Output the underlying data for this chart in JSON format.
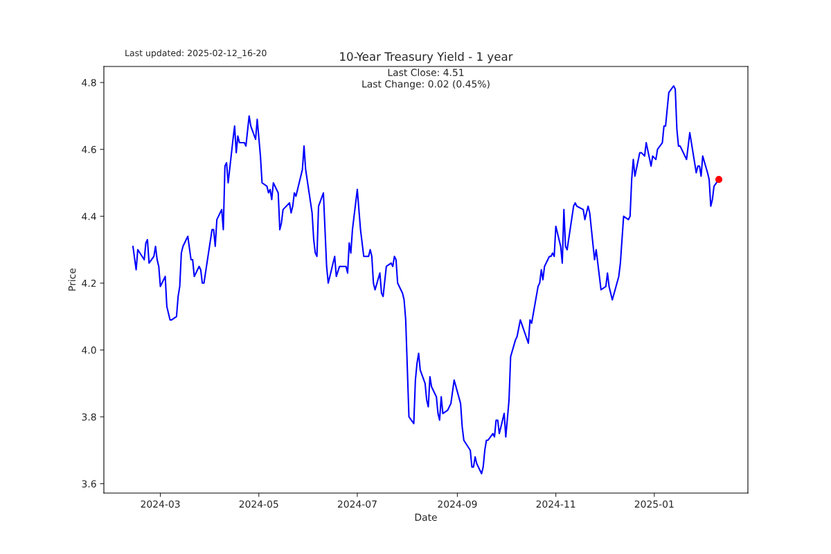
{
  "chart_data": {
    "type": "line",
    "title": "10-Year Treasury Yield - 1 year",
    "xlabel": "Date",
    "ylabel": "Price",
    "annotations": [
      "Last updated: 2025-02-12_16-20",
      "Last Close: 4.51",
      "Last Change: 0.02 (0.45%)"
    ],
    "xlim": [
      "2024-01-26",
      "2025-02-28"
    ],
    "xticks": [
      {
        "value": "2024-03-01",
        "label": "2024-03"
      },
      {
        "value": "2024-05-01",
        "label": "2024-05"
      },
      {
        "value": "2024-07-01",
        "label": "2024-07"
      },
      {
        "value": "2024-09-01",
        "label": "2024-09"
      },
      {
        "value": "2024-11-01",
        "label": "2024-11"
      },
      {
        "value": "2025-01-01",
        "label": "2025-01"
      }
    ],
    "ylim": [
      3.572,
      4.848
    ],
    "yticks": [
      3.6,
      3.8,
      {
        "value": 4,
        "label": "4.0"
      },
      4.2,
      4.4,
      4.6,
      4.8
    ],
    "grid": false,
    "legend": false,
    "series": [
      {
        "color": "#0000ff",
        "marker": "none",
        "line_style": "solid",
        "x": [
          "2024-02-13",
          "2024-02-15",
          "2024-02-16",
          "2024-02-20",
          "2024-02-21",
          "2024-02-22",
          "2024-02-23",
          "2024-02-26",
          "2024-02-27",
          "2024-02-28",
          "2024-02-29",
          "2024-03-01",
          "2024-03-04",
          "2024-03-05",
          "2024-03-07",
          "2024-03-08",
          "2024-03-11",
          "2024-03-12",
          "2024-03-13",
          "2024-03-14",
          "2024-03-15",
          "2024-03-18",
          "2024-03-20",
          "2024-03-21",
          "2024-03-22",
          "2024-03-25",
          "2024-03-26",
          "2024-03-27",
          "2024-03-28",
          "2024-04-02",
          "2024-04-03",
          "2024-04-04",
          "2024-04-05",
          "2024-04-08",
          "2024-04-09",
          "2024-04-10",
          "2024-04-11",
          "2024-04-12",
          "2024-04-15",
          "2024-04-16",
          "2024-04-17",
          "2024-04-18",
          "2024-04-19",
          "2024-04-22",
          "2024-04-23",
          "2024-04-25",
          "2024-04-26",
          "2024-04-29",
          "2024-04-30",
          "2024-05-02",
          "2024-05-03",
          "2024-05-06",
          "2024-05-07",
          "2024-05-08",
          "2024-05-09",
          "2024-05-10",
          "2024-05-13",
          "2024-05-14",
          "2024-05-15",
          "2024-05-16",
          "2024-05-20",
          "2024-05-21",
          "2024-05-22",
          "2024-05-23",
          "2024-05-24",
          "2024-05-28",
          "2024-05-29",
          "2024-05-30",
          "2024-06-03",
          "2024-06-04",
          "2024-06-05",
          "2024-06-06",
          "2024-06-07",
          "2024-06-10",
          "2024-06-12",
          "2024-06-13",
          "2024-06-17",
          "2024-06-18",
          "2024-06-20",
          "2024-06-24",
          "2024-06-25",
          "2024-06-26",
          "2024-06-27",
          "2024-06-28",
          "2024-07-01",
          "2024-07-03",
          "2024-07-05",
          "2024-07-08",
          "2024-07-09",
          "2024-07-10",
          "2024-07-11",
          "2024-07-12",
          "2024-07-15",
          "2024-07-16",
          "2024-07-17",
          "2024-07-19",
          "2024-07-22",
          "2024-07-23",
          "2024-07-24",
          "2024-07-25",
          "2024-07-26",
          "2024-07-29",
          "2024-07-30",
          "2024-07-31",
          "2024-08-02",
          "2024-08-05",
          "2024-08-06",
          "2024-08-07",
          "2024-08-08",
          "2024-08-09",
          "2024-08-12",
          "2024-08-13",
          "2024-08-14",
          "2024-08-15",
          "2024-08-16",
          "2024-08-19",
          "2024-08-20",
          "2024-08-21",
          "2024-08-22",
          "2024-08-23",
          "2024-08-26",
          "2024-08-28",
          "2024-08-30",
          "2024-09-03",
          "2024-09-04",
          "2024-09-05",
          "2024-09-09",
          "2024-09-10",
          "2024-09-11",
          "2024-09-12",
          "2024-09-13",
          "2024-09-16",
          "2024-09-17",
          "2024-09-18",
          "2024-09-19",
          "2024-09-20",
          "2024-09-23",
          "2024-09-24",
          "2024-09-25",
          "2024-09-26",
          "2024-09-27",
          "2024-09-30",
          "2024-10-01",
          "2024-10-03",
          "2024-10-04",
          "2024-10-07",
          "2024-10-08",
          "2024-10-10",
          "2024-10-15",
          "2024-10-16",
          "2024-10-17",
          "2024-10-21",
          "2024-10-22",
          "2024-10-23",
          "2024-10-24",
          "2024-10-25",
          "2024-10-28",
          "2024-10-29",
          "2024-10-30",
          "2024-10-31",
          "2024-11-01",
          "2024-11-04",
          "2024-11-05",
          "2024-11-06",
          "2024-11-07",
          "2024-11-08",
          "2024-11-12",
          "2024-11-13",
          "2024-11-14",
          "2024-11-18",
          "2024-11-19",
          "2024-11-21",
          "2024-11-22",
          "2024-11-25",
          "2024-11-26",
          "2024-11-29",
          "2024-12-02",
          "2024-12-03",
          "2024-12-04",
          "2024-12-06",
          "2024-12-10",
          "2024-12-11",
          "2024-12-13",
          "2024-12-16",
          "2024-12-17",
          "2024-12-18",
          "2024-12-19",
          "2024-12-20",
          "2024-12-23",
          "2024-12-24",
          "2024-12-26",
          "2024-12-27",
          "2024-12-30",
          "2024-12-31",
          "2025-01-02",
          "2025-01-03",
          "2025-01-06",
          "2025-01-07",
          "2025-01-08",
          "2025-01-10",
          "2025-01-13",
          "2025-01-14",
          "2025-01-15",
          "2025-01-16",
          "2025-01-17",
          "2025-01-21",
          "2025-01-23",
          "2025-01-24",
          "2025-01-27",
          "2025-01-28",
          "2025-01-29",
          "2025-01-30",
          "2025-01-31",
          "2025-02-03",
          "2025-02-04",
          "2025-02-05",
          "2025-02-06",
          "2025-02-07",
          "2025-02-10"
        ],
        "values": [
          4.31,
          4.24,
          4.3,
          4.27,
          4.32,
          4.33,
          4.26,
          4.28,
          4.31,
          4.27,
          4.25,
          4.19,
          4.22,
          4.13,
          4.09,
          4.09,
          4.1,
          4.16,
          4.19,
          4.29,
          4.31,
          4.34,
          4.27,
          4.27,
          4.22,
          4.25,
          4.24,
          4.2,
          4.2,
          4.36,
          4.36,
          4.31,
          4.39,
          4.42,
          4.36,
          4.55,
          4.56,
          4.5,
          4.63,
          4.67,
          4.59,
          4.64,
          4.62,
          4.62,
          4.61,
          4.7,
          4.67,
          4.63,
          4.69,
          4.58,
          4.5,
          4.49,
          4.47,
          4.48,
          4.45,
          4.5,
          4.47,
          4.36,
          4.38,
          4.42,
          4.44,
          4.41,
          4.43,
          4.47,
          4.46,
          4.54,
          4.61,
          4.54,
          4.41,
          4.33,
          4.29,
          4.28,
          4.43,
          4.47,
          4.25,
          4.2,
          4.28,
          4.22,
          4.25,
          4.25,
          4.23,
          4.32,
          4.29,
          4.36,
          4.48,
          4.36,
          4.28,
          4.28,
          4.3,
          4.28,
          4.2,
          4.18,
          4.23,
          4.17,
          4.16,
          4.25,
          4.26,
          4.25,
          4.28,
          4.27,
          4.2,
          4.17,
          4.15,
          4.09,
          3.8,
          3.78,
          3.91,
          3.96,
          3.99,
          3.94,
          3.9,
          3.85,
          3.83,
          3.92,
          3.89,
          3.86,
          3.81,
          3.79,
          3.86,
          3.81,
          3.82,
          3.84,
          3.91,
          3.84,
          3.77,
          3.73,
          3.7,
          3.65,
          3.65,
          3.68,
          3.66,
          3.63,
          3.65,
          3.7,
          3.73,
          3.73,
          3.75,
          3.74,
          3.79,
          3.79,
          3.75,
          3.81,
          3.74,
          3.85,
          3.98,
          4.03,
          4.04,
          4.09,
          4.02,
          4.09,
          4.08,
          4.19,
          4.2,
          4.24,
          4.21,
          4.25,
          4.28,
          4.28,
          4.29,
          4.28,
          4.37,
          4.31,
          4.26,
          4.42,
          4.31,
          4.3,
          4.43,
          4.44,
          4.43,
          4.42,
          4.39,
          4.43,
          4.41,
          4.27,
          4.3,
          4.18,
          4.19,
          4.23,
          4.19,
          4.15,
          4.22,
          4.26,
          4.4,
          4.39,
          4.4,
          4.51,
          4.57,
          4.52,
          4.59,
          4.59,
          4.58,
          4.62,
          4.55,
          4.58,
          4.57,
          4.6,
          4.62,
          4.67,
          4.67,
          4.77,
          4.79,
          4.78,
          4.66,
          4.61,
          4.61,
          4.57,
          4.65,
          4.62,
          4.53,
          4.55,
          4.55,
          4.52,
          4.58,
          4.53,
          4.51,
          4.43,
          4.45,
          4.49,
          4.51
        ]
      },
      {
        "type": "scatter",
        "color": "#ff0000",
        "marker": "circle",
        "x": [
          "2025-02-10"
        ],
        "values": [
          4.51
        ]
      }
    ]
  }
}
